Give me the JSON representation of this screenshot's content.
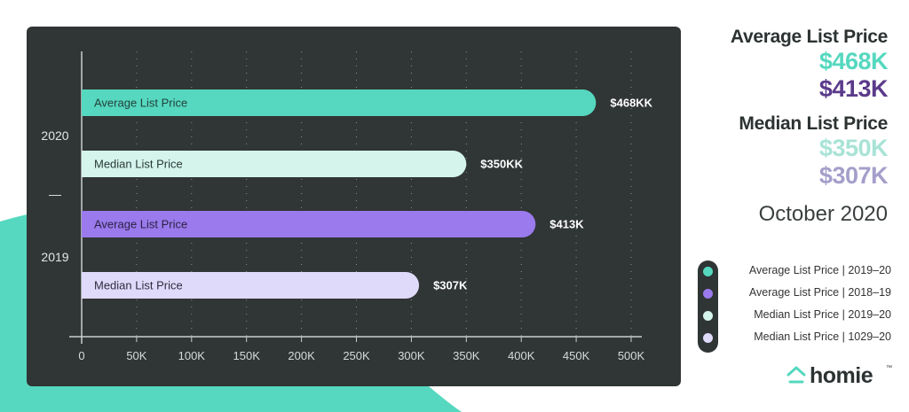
{
  "chart_data": {
    "type": "bar",
    "orientation": "horizontal",
    "groups": [
      {
        "label": "2020",
        "bars": [
          {
            "label": "Average List Price",
            "value": 468,
            "data_label": "$468KK",
            "color": "#55d8bf",
            "label_color": "#23403b"
          },
          {
            "label": "Median List Price",
            "value": 350,
            "data_label": "$350KK",
            "color": "#d4f4ec",
            "label_color": "#2a3a37"
          }
        ]
      },
      {
        "label": "2019",
        "bars": [
          {
            "label": "Average List Price",
            "value": 413,
            "data_label": "$413K",
            "color": "#9a7aec",
            "label_color": "#2c2244"
          },
          {
            "label": "Median List Price",
            "value": 307,
            "data_label": "$307K",
            "color": "#e0dafa",
            "label_color": "#302c40"
          }
        ]
      }
    ],
    "group_separator": "—",
    "x_ticks": [
      "0",
      "50K",
      "100K",
      "150K",
      "200K",
      "250K",
      "300K",
      "350K",
      "400K",
      "450K",
      "500K"
    ],
    "xlim": [
      0,
      500
    ],
    "grid": "vertical dotted",
    "title": "",
    "xlabel": "",
    "ylabel": ""
  },
  "summary": {
    "average_heading": "Average List Price",
    "average_2020": "$468K",
    "average_2019": "$413K",
    "median_heading": "Median List Price",
    "median_2020": "$350K",
    "median_2019": "$307K",
    "date": "October 2020",
    "colors": {
      "avg_2020": "#55d8bf",
      "avg_2019": "#5a3a8a",
      "med_2020": "#a8e3d6",
      "med_2019": "#a49fca"
    }
  },
  "legend": [
    {
      "label": "Average List Price  |  2019–20",
      "color": "#55d8bf"
    },
    {
      "label": "Average List Price  |  2018–19",
      "color": "#9a7aec"
    },
    {
      "label": "Median List Price | 2019–20",
      "color": "#d4f4ec"
    },
    {
      "label": "Median List Price | 1029–20",
      "color": "#e0dafa"
    }
  ],
  "brand": {
    "name": "homie",
    "trademark": "™",
    "icon": "house-logo-icon",
    "accent": "#55d8bf"
  }
}
